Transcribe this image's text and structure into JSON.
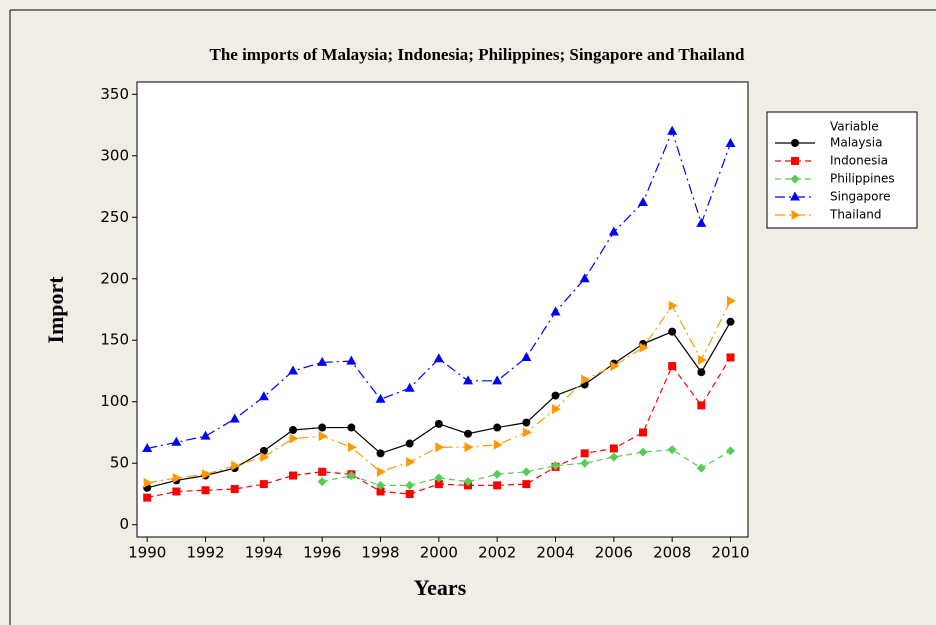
{
  "chart_data": {
    "type": "line",
    "title": "The imports of Malaysia; Indonesia; Philippines; Singapore and Thailand",
    "x_label": "Years",
    "y_label": "Import",
    "legend_title": "Variable",
    "legend_position": "right",
    "x": [
      1990,
      1991,
      1992,
      1993,
      1994,
      1995,
      1996,
      1997,
      1998,
      1999,
      2000,
      2001,
      2002,
      2003,
      2004,
      2005,
      2006,
      2007,
      2008,
      2009,
      2010
    ],
    "xlim": [
      1989.65,
      2010.6
    ],
    "xticks": [
      1990,
      1992,
      1994,
      1996,
      1998,
      2000,
      2002,
      2004,
      2006,
      2008,
      2010
    ],
    "ylim": [
      -10,
      360
    ],
    "yticks": [
      0,
      50,
      100,
      150,
      200,
      250,
      300,
      350
    ],
    "series": [
      {
        "name": "Malaysia",
        "color": "#000000",
        "marker": "circle",
        "dash": "none",
        "values": [
          30,
          36,
          40,
          46,
          60,
          77,
          79,
          79,
          58,
          66,
          82,
          74,
          79,
          83,
          105,
          114,
          131,
          147,
          157,
          124,
          165
        ]
      },
      {
        "name": "Indonesia",
        "color": "#ff0000",
        "marker": "square",
        "dash": "6 4",
        "values": [
          22,
          27,
          28,
          29,
          33,
          40,
          43,
          41,
          27,
          25,
          33,
          32,
          32,
          33,
          47,
          58,
          62,
          75,
          129,
          97,
          136
        ]
      },
      {
        "name": "Philippines",
        "color": "#55cc55",
        "marker": "diamond",
        "dash": "6 4",
        "values": [
          null,
          null,
          null,
          null,
          null,
          null,
          35,
          40,
          32,
          32,
          38,
          35,
          41,
          43,
          48,
          50,
          55,
          59,
          61,
          46,
          60
        ]
      },
      {
        "name": "Singapore",
        "color": "#0000ff",
        "marker": "triangle-up",
        "dash": "10 4 2 4",
        "values": [
          62,
          67,
          72,
          86,
          104,
          125,
          132,
          133,
          102,
          111,
          135,
          117,
          117,
          136,
          173,
          200,
          238,
          262,
          320,
          245,
          310
        ]
      },
      {
        "name": "Thailand",
        "color": "#ff9900",
        "marker": "triangle-right",
        "dash": "10 4 2 4",
        "values": [
          34,
          38,
          41,
          48,
          55,
          70,
          72,
          63,
          43,
          51,
          63,
          63,
          65,
          75,
          94,
          118,
          129,
          144,
          178,
          134,
          182
        ]
      }
    ]
  }
}
